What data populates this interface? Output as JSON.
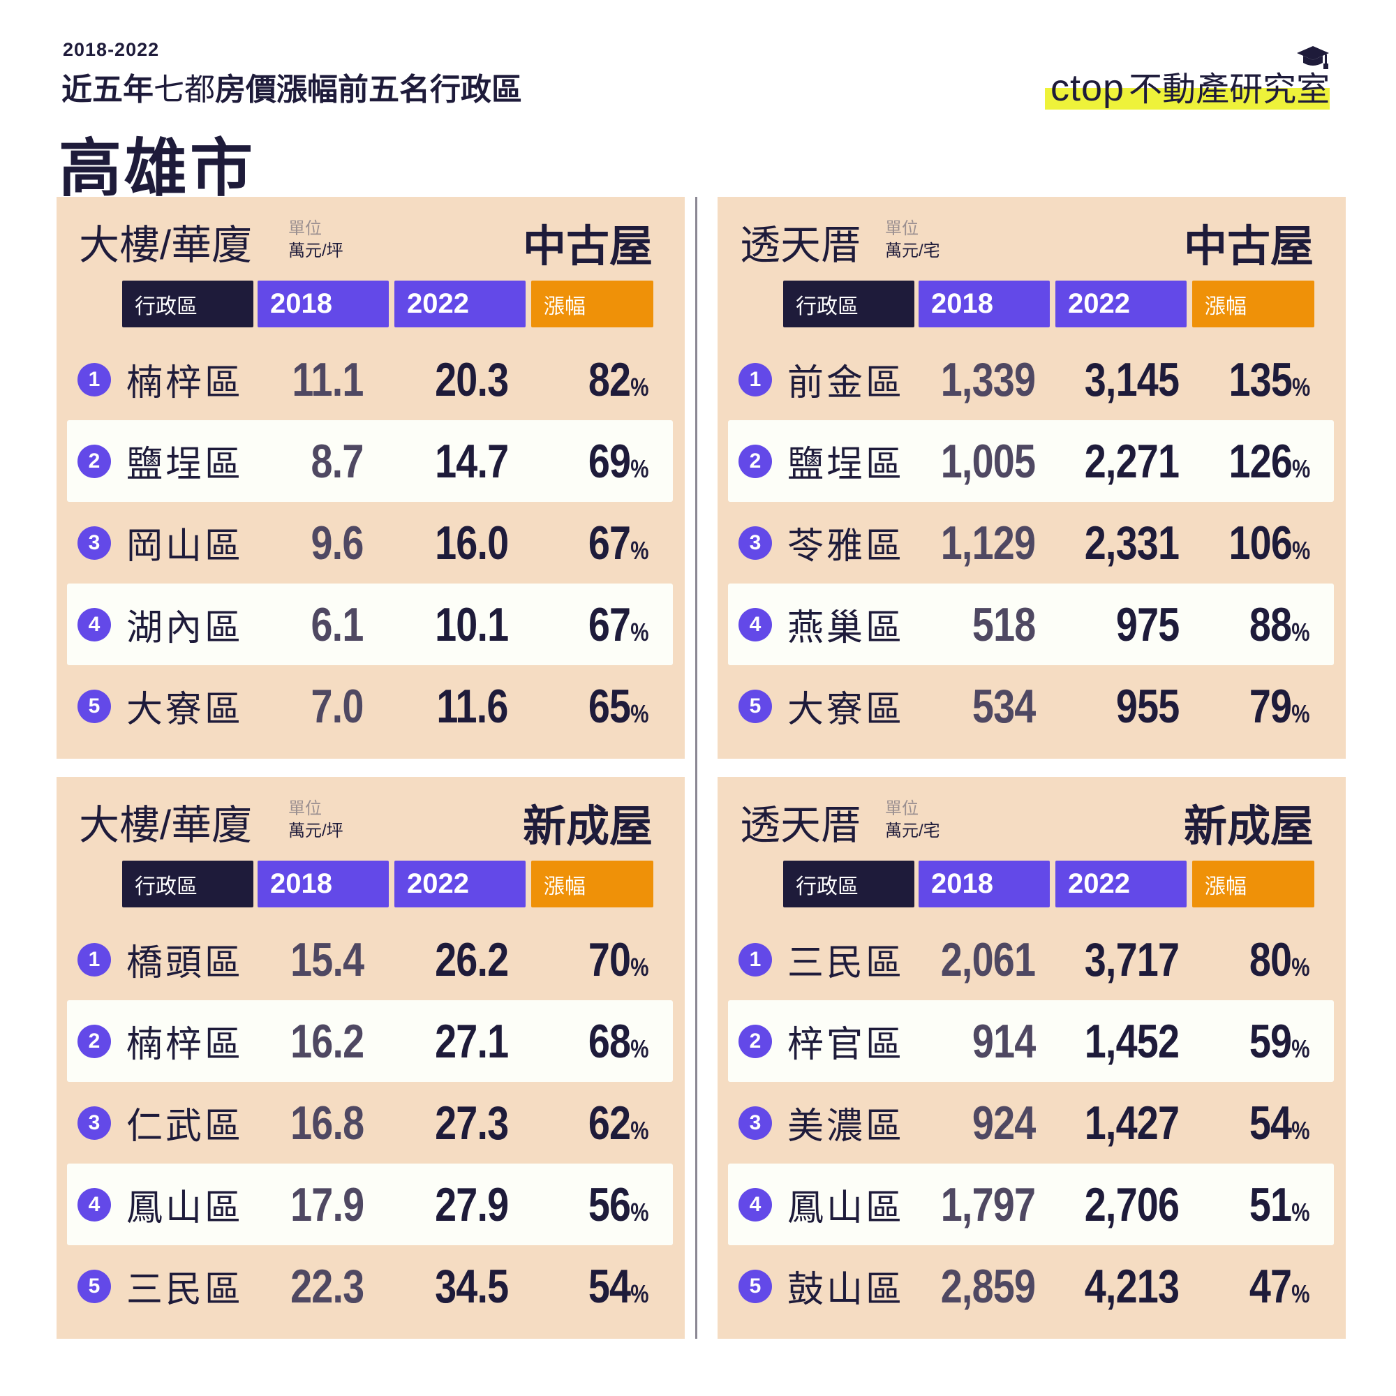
{
  "header": {
    "years": "2018-2022",
    "headline_light_1": "近五年",
    "headline_part_a": "近五年",
    "headline_part_b": "七都",
    "headline_highlight": "房價漲幅前五名",
    "headline_part_c": "行政區",
    "city": "高雄市"
  },
  "logo": {
    "brand_en": "ctop",
    "brand_zh": "不動產研究室",
    "icon": "graduation-cap-icon",
    "highlight_color": "#eef23a"
  },
  "colors": {
    "panel_bg": "#f5dcc2",
    "alt_row_bg": "#fdfef8",
    "dark": "#1e1b3a",
    "purple": "#6349e8",
    "orange": "#ef9108",
    "muted_value": "#4f4862"
  },
  "table_headers": {
    "district": "行政區",
    "y2018": "2018",
    "y2022": "2022",
    "growth": "漲幅",
    "percent_sign": "%"
  },
  "panels": [
    {
      "property_type": "大樓/華廈",
      "unit_label": "單位",
      "unit": "萬元/坪",
      "category": "中古屋",
      "rows": [
        {
          "rank": "1",
          "district": "楠梓區",
          "v2018": "11.1",
          "v2022": "20.3",
          "growth": "82"
        },
        {
          "rank": "2",
          "district": "鹽埕區",
          "v2018": "8.7",
          "v2022": "14.7",
          "growth": "69"
        },
        {
          "rank": "3",
          "district": "岡山區",
          "v2018": "9.6",
          "v2022": "16.0",
          "growth": "67"
        },
        {
          "rank": "4",
          "district": "湖內區",
          "v2018": "6.1",
          "v2022": "10.1",
          "growth": "67"
        },
        {
          "rank": "5",
          "district": "大寮區",
          "v2018": "7.0",
          "v2022": "11.6",
          "growth": "65"
        }
      ]
    },
    {
      "property_type": "透天厝",
      "unit_label": "單位",
      "unit": "萬元/宅",
      "category": "中古屋",
      "rows": [
        {
          "rank": "1",
          "district": "前金區",
          "v2018": "1,339",
          "v2022": "3,145",
          "growth": "135"
        },
        {
          "rank": "2",
          "district": "鹽埕區",
          "v2018": "1,005",
          "v2022": "2,271",
          "growth": "126"
        },
        {
          "rank": "3",
          "district": "苓雅區",
          "v2018": "1,129",
          "v2022": "2,331",
          "growth": "106"
        },
        {
          "rank": "4",
          "district": "燕巢區",
          "v2018": "518",
          "v2022": "975",
          "growth": "88"
        },
        {
          "rank": "5",
          "district": "大寮區",
          "v2018": "534",
          "v2022": "955",
          "growth": "79"
        }
      ]
    },
    {
      "property_type": "大樓/華廈",
      "unit_label": "單位",
      "unit": "萬元/坪",
      "category": "新成屋",
      "rows": [
        {
          "rank": "1",
          "district": "橋頭區",
          "v2018": "15.4",
          "v2022": "26.2",
          "growth": "70"
        },
        {
          "rank": "2",
          "district": "楠梓區",
          "v2018": "16.2",
          "v2022": "27.1",
          "growth": "68"
        },
        {
          "rank": "3",
          "district": "仁武區",
          "v2018": "16.8",
          "v2022": "27.3",
          "growth": "62"
        },
        {
          "rank": "4",
          "district": "鳳山區",
          "v2018": "17.9",
          "v2022": "27.9",
          "growth": "56"
        },
        {
          "rank": "5",
          "district": "三民區",
          "v2018": "22.3",
          "v2022": "34.5",
          "growth": "54"
        }
      ]
    },
    {
      "property_type": "透天厝",
      "unit_label": "單位",
      "unit": "萬元/宅",
      "category": "新成屋",
      "rows": [
        {
          "rank": "1",
          "district": "三民區",
          "v2018": "2,061",
          "v2022": "3,717",
          "growth": "80"
        },
        {
          "rank": "2",
          "district": "梓官區",
          "v2018": "914",
          "v2022": "1,452",
          "growth": "59"
        },
        {
          "rank": "3",
          "district": "美濃區",
          "v2018": "924",
          "v2022": "1,427",
          "growth": "54"
        },
        {
          "rank": "4",
          "district": "鳳山區",
          "v2018": "1,797",
          "v2022": "2,706",
          "growth": "51"
        },
        {
          "rank": "5",
          "district": "鼓山區",
          "v2018": "2,859",
          "v2022": "4,213",
          "growth": "47"
        }
      ]
    }
  ],
  "chart_data": [
    {
      "type": "table",
      "title": "高雄市 大樓/華廈 中古屋 (萬元/坪)",
      "columns": [
        "行政區",
        "2018",
        "2022",
        "漲幅"
      ],
      "rows": [
        [
          "楠梓區",
          11.1,
          20.3,
          "82%"
        ],
        [
          "鹽埕區",
          8.7,
          14.7,
          "69%"
        ],
        [
          "岡山區",
          9.6,
          16.0,
          "67%"
        ],
        [
          "湖內區",
          6.1,
          10.1,
          "67%"
        ],
        [
          "大寮區",
          7.0,
          11.6,
          "65%"
        ]
      ]
    },
    {
      "type": "table",
      "title": "高雄市 透天厝 中古屋 (萬元/宅)",
      "columns": [
        "行政區",
        "2018",
        "2022",
        "漲幅"
      ],
      "rows": [
        [
          "前金區",
          1339,
          3145,
          "135%"
        ],
        [
          "鹽埕區",
          1005,
          2271,
          "126%"
        ],
        [
          "苓雅區",
          1129,
          2331,
          "106%"
        ],
        [
          "燕巢區",
          518,
          975,
          "88%"
        ],
        [
          "大寮區",
          534,
          955,
          "79%"
        ]
      ]
    },
    {
      "type": "table",
      "title": "高雄市 大樓/華廈 新成屋 (萬元/坪)",
      "columns": [
        "行政區",
        "2018",
        "2022",
        "漲幅"
      ],
      "rows": [
        [
          "橋頭區",
          15.4,
          26.2,
          "70%"
        ],
        [
          "楠梓區",
          16.2,
          27.1,
          "68%"
        ],
        [
          "仁武區",
          16.8,
          27.3,
          "62%"
        ],
        [
          "鳳山區",
          17.9,
          27.9,
          "56%"
        ],
        [
          "三民區",
          22.3,
          34.5,
          "54%"
        ]
      ]
    },
    {
      "type": "table",
      "title": "高雄市 透天厝 新成屋 (萬元/宅)",
      "columns": [
        "行政區",
        "2018",
        "2022",
        "漲幅"
      ],
      "rows": [
        [
          "三民區",
          2061,
          3717,
          "80%"
        ],
        [
          "梓官區",
          914,
          1452,
          "59%"
        ],
        [
          "美濃區",
          924,
          1427,
          "54%"
        ],
        [
          "鳳山區",
          1797,
          2706,
          "51%"
        ],
        [
          "鼓山區",
          2859,
          4213,
          "47%"
        ]
      ]
    }
  ]
}
